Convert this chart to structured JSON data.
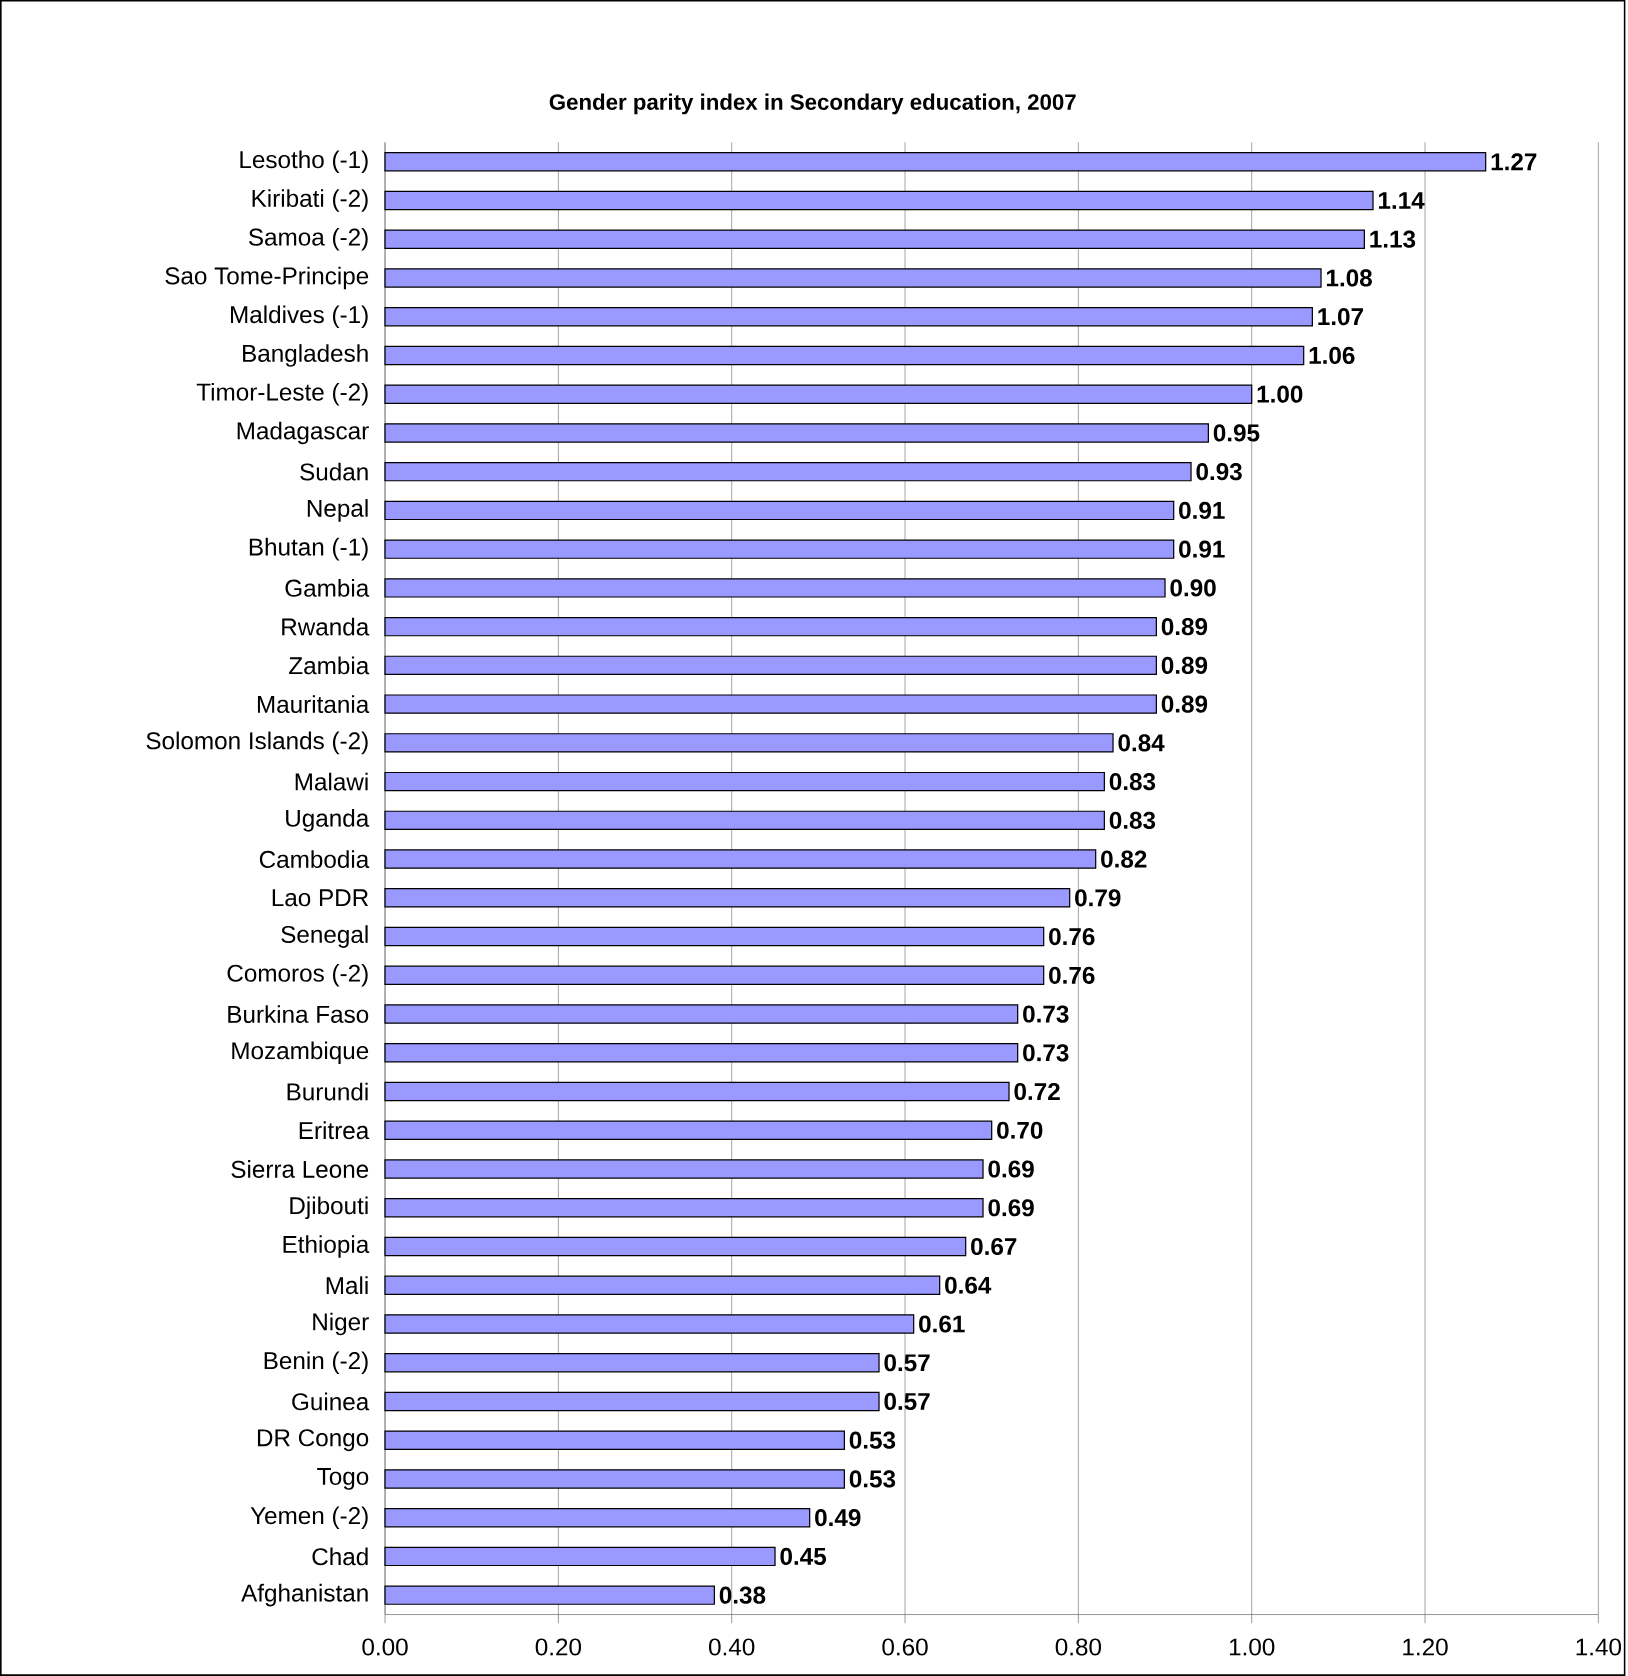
{
  "chart_data": {
    "type": "bar",
    "orientation": "horizontal",
    "title": "Gender parity index in Secondary education, 2007",
    "categories": [
      "Lesotho (-1)",
      "Kiribati (-2)",
      "Samoa (-2)",
      "Sao Tome-Principe",
      "Maldives (-1)",
      "Bangladesh",
      "Timor-Leste (-2)",
      "Madagascar",
      "Sudan",
      "Nepal",
      "Bhutan (-1)",
      "Gambia",
      "Rwanda",
      "Zambia",
      "Mauritania",
      "Solomon Islands (-2)",
      "Malawi",
      "Uganda",
      "Cambodia",
      "Lao PDR",
      "Senegal",
      "Comoros (-2)",
      "Burkina Faso",
      "Mozambique",
      "Burundi",
      "Eritrea",
      "Sierra Leone",
      "Djibouti",
      "Ethiopia",
      "Mali",
      "Niger",
      "Benin (-2)",
      "Guinea",
      "DR Congo",
      "Togo",
      "Yemen (-2)",
      "Chad",
      "Afghanistan"
    ],
    "values": [
      1.27,
      1.14,
      1.13,
      1.08,
      1.07,
      1.06,
      1.0,
      0.95,
      0.93,
      0.91,
      0.91,
      0.9,
      0.89,
      0.89,
      0.89,
      0.84,
      0.83,
      0.83,
      0.82,
      0.79,
      0.76,
      0.76,
      0.73,
      0.73,
      0.72,
      0.7,
      0.69,
      0.69,
      0.67,
      0.64,
      0.61,
      0.57,
      0.57,
      0.53,
      0.53,
      0.49,
      0.45,
      0.38
    ],
    "value_labels": [
      "1.27",
      "1.14",
      "1.13",
      "1.08",
      "1.07",
      "1.06",
      "1.00",
      "0.95",
      "0.93",
      "0.91",
      "0.91",
      "0.90",
      "0.89",
      "0.89",
      "0.89",
      "0.84",
      "0.83",
      "0.83",
      "0.82",
      "0.79",
      "0.76",
      "0.76",
      "0.73",
      "0.73",
      "0.72",
      "0.70",
      "0.69",
      "0.69",
      "0.67",
      "0.64",
      "0.61",
      "0.57",
      "0.57",
      "0.53",
      "0.53",
      "0.49",
      "0.45",
      "0.38"
    ],
    "color": "#9999ff",
    "xlim": [
      0,
      1.4
    ],
    "xticks": [
      {
        "value": 0,
        "label": "0.00"
      },
      {
        "value": 0.2,
        "label": "0.20"
      },
      {
        "value": 0.4,
        "label": "0.40"
      },
      {
        "value": 0.6,
        "label": "0.60"
      },
      {
        "value": 0.8,
        "label": "0.80"
      },
      {
        "value": 1.0,
        "label": "1.00"
      },
      {
        "value": 1.2,
        "label": "1.20"
      },
      {
        "value": 1.4,
        "label": "1.40"
      }
    ],
    "grid": "x"
  }
}
